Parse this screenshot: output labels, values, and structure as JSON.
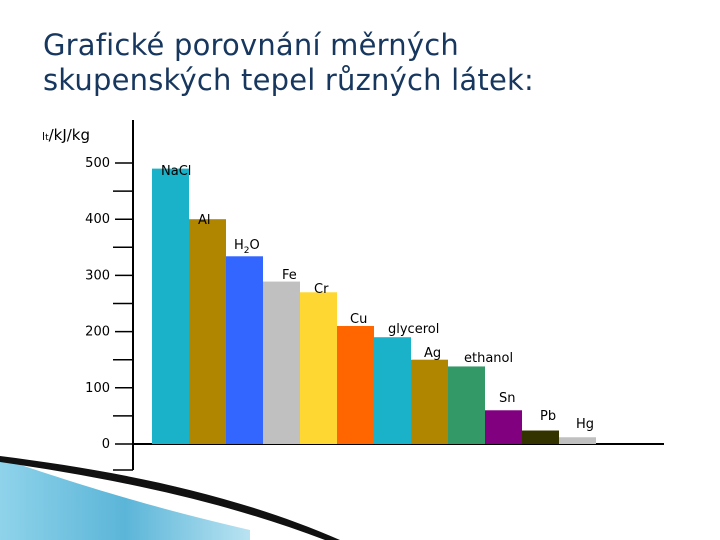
{
  "title_lines": [
    "Grafické porovnání měrných",
    "skupenských tepel různých látek:"
  ],
  "chart_data": {
    "type": "bar",
    "title": "Grafické porovnání měrných skupenských tepel různých látek:",
    "ylabel": {
      "symbol": "l",
      "subscript": "t",
      "unit": "/kJ/kg"
    },
    "yticks": [
      0,
      100,
      200,
      300,
      400,
      500
    ],
    "ylim": [
      0,
      500
    ],
    "grid": false,
    "legend": "none",
    "bars": [
      {
        "label": "NaCl",
        "value": 490,
        "color": "#1ab2c8"
      },
      {
        "label": "Al",
        "value": 400,
        "color": "#b08500"
      },
      {
        "label": "H2O",
        "value": 334,
        "color": "#3366ff"
      },
      {
        "label": "Fe",
        "value": 289,
        "color": "#c0c0c0"
      },
      {
        "label": "Cr",
        "value": 270,
        "color": "#ffd733"
      },
      {
        "label": "Cu",
        "value": 210,
        "color": "#ff6600"
      },
      {
        "label": "glycerol",
        "value": 190,
        "color": "#1ab2c8"
      },
      {
        "label": "Ag",
        "value": 150,
        "color": "#b08500"
      },
      {
        "label": "ethanol",
        "value": 138,
        "color": "#339966"
      },
      {
        "label": "Sn",
        "value": 60,
        "color": "#800080"
      },
      {
        "label": "Pb",
        "value": 24,
        "color": "#333300"
      },
      {
        "label": "Hg",
        "value": 12,
        "color": "#c0c0c0"
      }
    ]
  }
}
